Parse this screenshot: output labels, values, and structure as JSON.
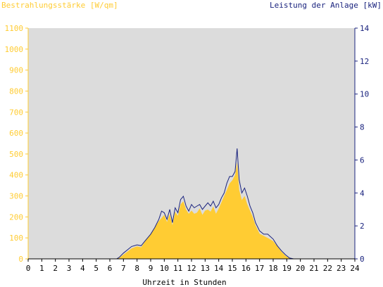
{
  "chart_data": {
    "type": "area",
    "left_axis_title": "Bestrahlungsstärke [W/qm]",
    "right_axis_title": "Leistung der Anlage [kW]",
    "xlabel": "Uhrzeit in Stunden",
    "x_ticks": [
      "0",
      "1",
      "2",
      "3",
      "4",
      "5",
      "6",
      "7",
      "8",
      "9",
      "10",
      "11",
      "12",
      "13",
      "14",
      "15",
      "16",
      "17",
      "18",
      "19",
      "20",
      "21",
      "22",
      "23",
      "24"
    ],
    "y_left_ticks": [
      "0",
      "100",
      "200",
      "300",
      "400",
      "500",
      "600",
      "700",
      "800",
      "900",
      "1000",
      "1100"
    ],
    "y_right_ticks": [
      "0",
      "2",
      "4",
      "6",
      "8",
      "10",
      "12",
      "14"
    ],
    "xlim": [
      0,
      24
    ],
    "ylim_left": [
      0,
      1100
    ],
    "ylim_right": [
      0,
      14
    ],
    "grid": false,
    "colors": {
      "plot_background": "#dcdcdc",
      "irradiance_fill": "#ffcc33",
      "power_line": "#1a237e",
      "left_axis": "#ffcc33",
      "right_axis": "#1a237e",
      "bottom_axis": "#000000"
    },
    "series": [
      {
        "axis": "left",
        "style": "filled-area",
        "x": [
          0,
          6.5,
          6.7,
          7.0,
          7.3,
          7.6,
          8.0,
          8.3,
          8.6,
          9.0,
          9.3,
          9.6,
          9.8,
          10.0,
          10.2,
          10.4,
          10.6,
          10.8,
          11.0,
          11.2,
          11.4,
          11.6,
          11.8,
          12.0,
          12.2,
          12.4,
          12.6,
          12.8,
          13.0,
          13.2,
          13.4,
          13.6,
          13.8,
          14.0,
          14.2,
          14.4,
          14.6,
          14.8,
          15.0,
          15.2,
          15.35,
          15.5,
          15.7,
          15.9,
          16.1,
          16.3,
          16.5,
          16.7,
          17.0,
          17.3,
          17.6,
          18.0,
          18.3,
          18.6,
          18.9,
          19.2,
          19.5,
          24
        ],
        "y": [
          0,
          0,
          5,
          20,
          35,
          50,
          60,
          55,
          85,
          120,
          150,
          180,
          195,
          210,
          175,
          215,
          160,
          225,
          205,
          260,
          275,
          235,
          215,
          230,
          215,
          220,
          240,
          210,
          230,
          235,
          225,
          250,
          215,
          240,
          270,
          300,
          330,
          360,
          375,
          400,
          460,
          330,
          280,
          300,
          260,
          230,
          200,
          160,
          120,
          110,
          100,
          85,
          60,
          35,
          15,
          2,
          0,
          0
        ]
      },
      {
        "axis": "right",
        "style": "line",
        "x": [
          0,
          6.5,
          6.7,
          7.0,
          7.3,
          7.6,
          8.0,
          8.3,
          8.6,
          9.0,
          9.3,
          9.6,
          9.8,
          10.0,
          10.2,
          10.4,
          10.6,
          10.8,
          11.0,
          11.2,
          11.4,
          11.6,
          11.8,
          12.0,
          12.2,
          12.4,
          12.6,
          12.8,
          13.0,
          13.2,
          13.4,
          13.6,
          13.8,
          14.0,
          14.2,
          14.4,
          14.6,
          14.8,
          15.0,
          15.2,
          15.35,
          15.5,
          15.7,
          15.9,
          16.1,
          16.3,
          16.5,
          16.7,
          17.0,
          17.3,
          17.6,
          18.0,
          18.3,
          18.6,
          18.9,
          19.2,
          19.5,
          24
        ],
        "y": [
          0,
          0,
          0.1,
          0.35,
          0.55,
          0.75,
          0.85,
          0.8,
          1.1,
          1.5,
          1.9,
          2.4,
          2.9,
          2.8,
          2.4,
          3.0,
          2.2,
          3.1,
          2.8,
          3.6,
          3.8,
          3.2,
          2.9,
          3.3,
          3.1,
          3.2,
          3.3,
          3.0,
          3.2,
          3.4,
          3.2,
          3.5,
          3.1,
          3.3,
          3.7,
          4.0,
          4.6,
          5.0,
          5.0,
          5.3,
          6.7,
          4.8,
          4.0,
          4.3,
          3.8,
          3.2,
          2.8,
          2.2,
          1.7,
          1.5,
          1.5,
          1.2,
          0.8,
          0.5,
          0.25,
          0.05,
          0,
          0
        ]
      }
    ]
  }
}
